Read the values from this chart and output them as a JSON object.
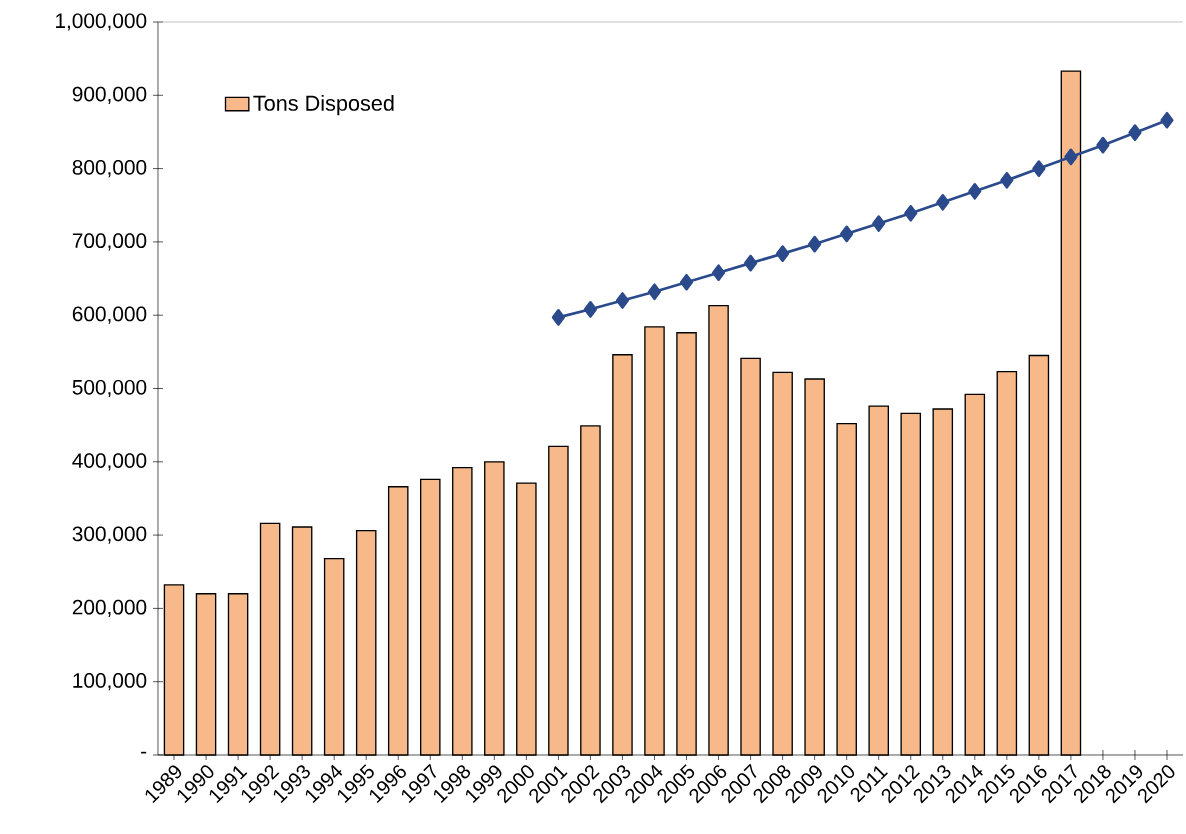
{
  "chart_data": {
    "type": "bar",
    "categories": [
      "1989",
      "1990",
      "1991",
      "1992",
      "1993",
      "1994",
      "1995",
      "1996",
      "1997",
      "1998",
      "1999",
      "2000",
      "2001",
      "2002",
      "2003",
      "2004",
      "2005",
      "2006",
      "2007",
      "2008",
      "2009",
      "2010",
      "2011",
      "2012",
      "2013",
      "2014",
      "2015",
      "2016",
      "2017",
      "2018",
      "2019",
      "2020"
    ],
    "series": [
      {
        "name": "Tons Disposed",
        "color": "#f7b98a",
        "values": [
          232000,
          220000,
          220000,
          316000,
          311000,
          268000,
          306000,
          366000,
          376000,
          392000,
          400000,
          371000,
          421000,
          449000,
          546000,
          584000,
          576000,
          613000,
          541000,
          522000,
          513000,
          452000,
          476000,
          466000,
          472000,
          492000,
          523000,
          545000,
          933000,
          null,
          null,
          null
        ]
      },
      {
        "type": "line",
        "color": "#2b4a8c",
        "marker": "diamond",
        "values": [
          null,
          null,
          null,
          null,
          null,
          null,
          null,
          null,
          null,
          null,
          null,
          null,
          597000,
          608000,
          620000,
          632000,
          645000,
          658000,
          671000,
          684000,
          697000,
          711000,
          725000,
          739000,
          754000,
          769000,
          784000,
          800000,
          816000,
          832000,
          849000,
          866000
        ]
      }
    ],
    "ylim": [
      0,
      1000000
    ],
    "yticks": [
      {
        "value": 0,
        "label": "-"
      },
      {
        "value": 100000,
        "label": "100,000"
      },
      {
        "value": 200000,
        "label": "200,000"
      },
      {
        "value": 300000,
        "label": "300,000"
      },
      {
        "value": 400000,
        "label": "400,000"
      },
      {
        "value": 500000,
        "label": "500,000"
      },
      {
        "value": 600000,
        "label": "600,000"
      },
      {
        "value": 700000,
        "label": "700,000"
      },
      {
        "value": 800000,
        "label": "800,000"
      },
      {
        "value": 900000,
        "label": "900,000"
      },
      {
        "value": 1000000,
        "label": "1,000,000"
      }
    ],
    "legend": "top left"
  }
}
